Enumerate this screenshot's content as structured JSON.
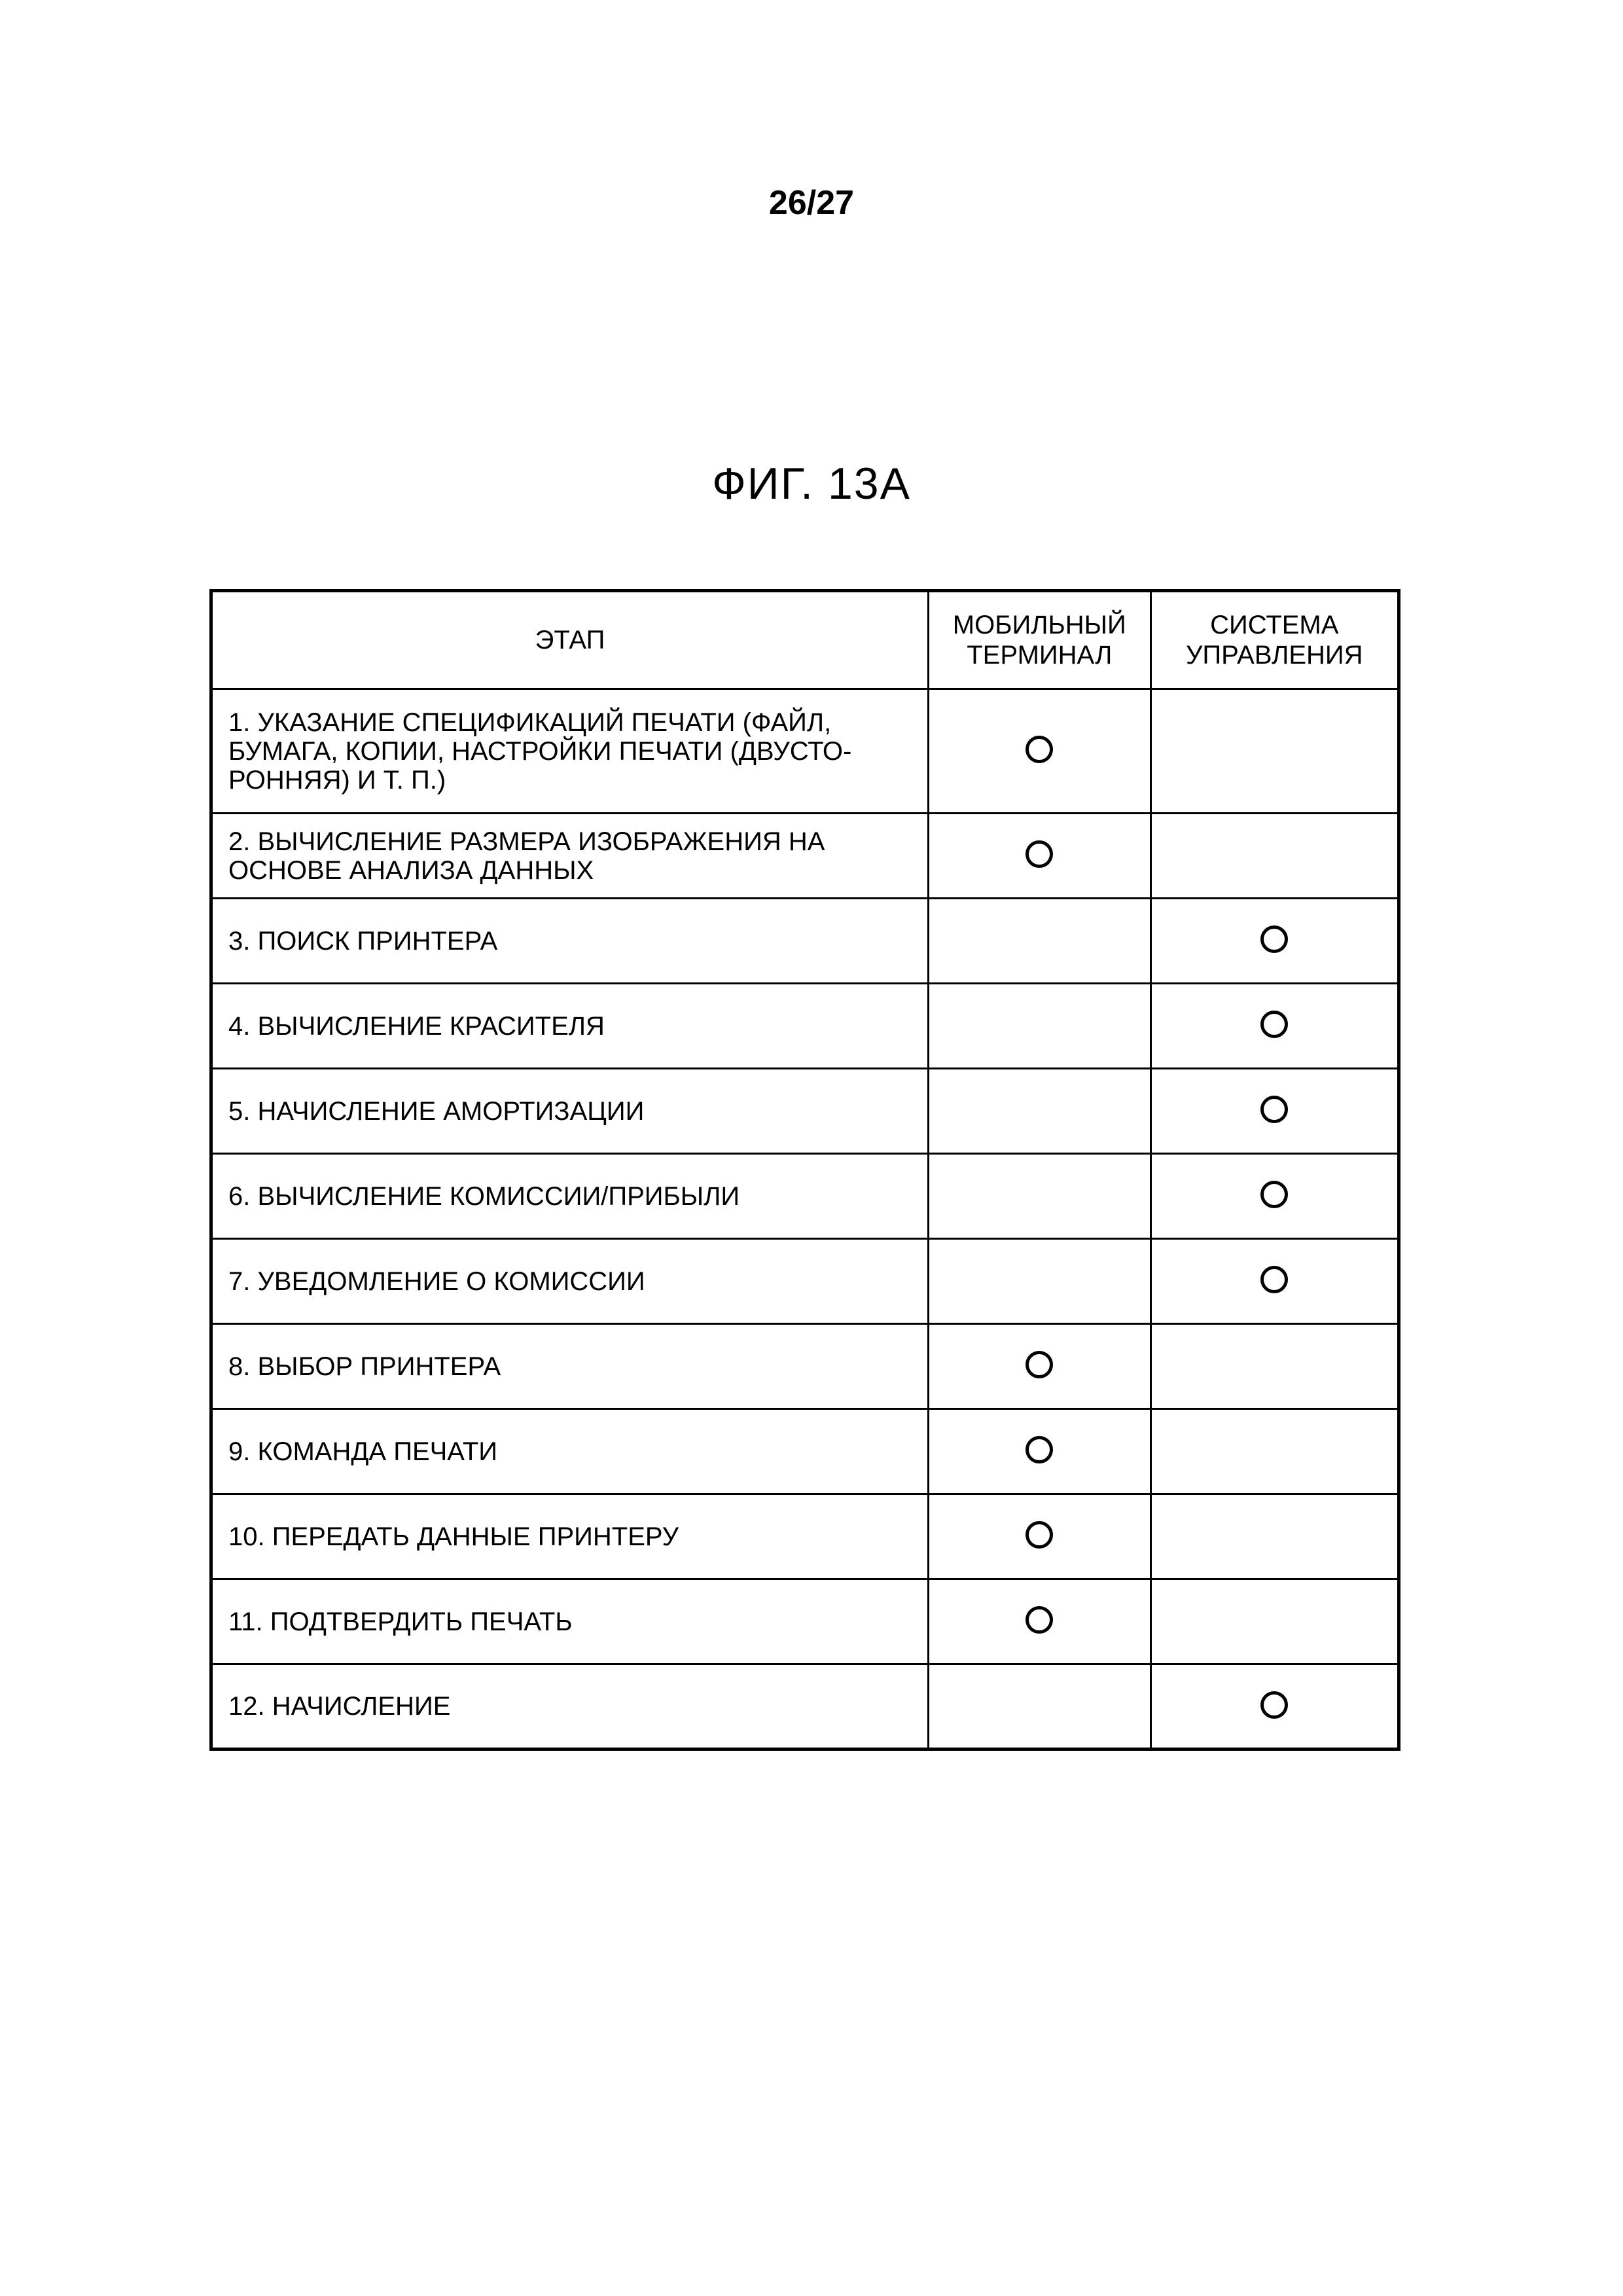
{
  "page_number": "26/27",
  "figure_title": "ФИГ. 13A",
  "table": {
    "columns": [
      "ЭТАП",
      "МОБИЛЬНЫЙ\nТЕРМИНАЛ",
      "СИСТЕМА\nУПРАВЛЕНИЯ"
    ],
    "rows": [
      {
        "step": "1. УКАЗАНИЕ СПЕЦИФИКАЦИЙ ПЕЧАТИ (ФАЙЛ, БУМАГА, КОПИИ, НАСТРОЙКИ ПЕЧАТИ (ДВУСТО-РОННЯЯ) И Т. П.)",
        "mobile": true,
        "system": false,
        "tall": true
      },
      {
        "step": "2. ВЫЧИСЛЕНИЕ РАЗМЕРА ИЗОБРАЖЕНИЯ НА ОСНОВЕ АНАЛИЗА ДАННЫХ",
        "mobile": true,
        "system": false,
        "tall": false
      },
      {
        "step": "3. ПОИСК ПРИНТЕРА",
        "mobile": false,
        "system": true,
        "tall": false
      },
      {
        "step": "4. ВЫЧИСЛЕНИЕ КРАСИТЕЛЯ",
        "mobile": false,
        "system": true,
        "tall": false
      },
      {
        "step": "5. НАЧИСЛЕНИЕ АМОРТИЗАЦИИ",
        "mobile": false,
        "system": true,
        "tall": false
      },
      {
        "step": "6. ВЫЧИСЛЕНИЕ КОМИССИИ/ПРИБЫЛИ",
        "mobile": false,
        "system": true,
        "tall": false
      },
      {
        "step": "7. УВЕДОМЛЕНИЕ О КОМИССИИ",
        "mobile": false,
        "system": true,
        "tall": false
      },
      {
        "step": "8. ВЫБОР ПРИНТЕРА",
        "mobile": true,
        "system": false,
        "tall": false
      },
      {
        "step": "9. КОМАНДА ПЕЧАТИ",
        "mobile": true,
        "system": false,
        "tall": false
      },
      {
        "step": "10. ПЕРЕДАТЬ ДАННЫЕ ПРИНТЕРУ",
        "mobile": true,
        "system": false,
        "tall": false
      },
      {
        "step": "11. ПОДТВЕРДИТЬ ПЕЧАТЬ",
        "mobile": true,
        "system": false,
        "tall": false
      },
      {
        "step": "12. НАЧИСЛЕНИЕ",
        "mobile": false,
        "system": true,
        "tall": false
      }
    ],
    "mark_symbol": "circle",
    "colors": {
      "background": "#ffffff",
      "text": "#000000",
      "border": "#000000"
    },
    "border_width_outer": 5,
    "border_width_inner": 3,
    "font_size_header": 40,
    "font_size_cell": 40
  }
}
